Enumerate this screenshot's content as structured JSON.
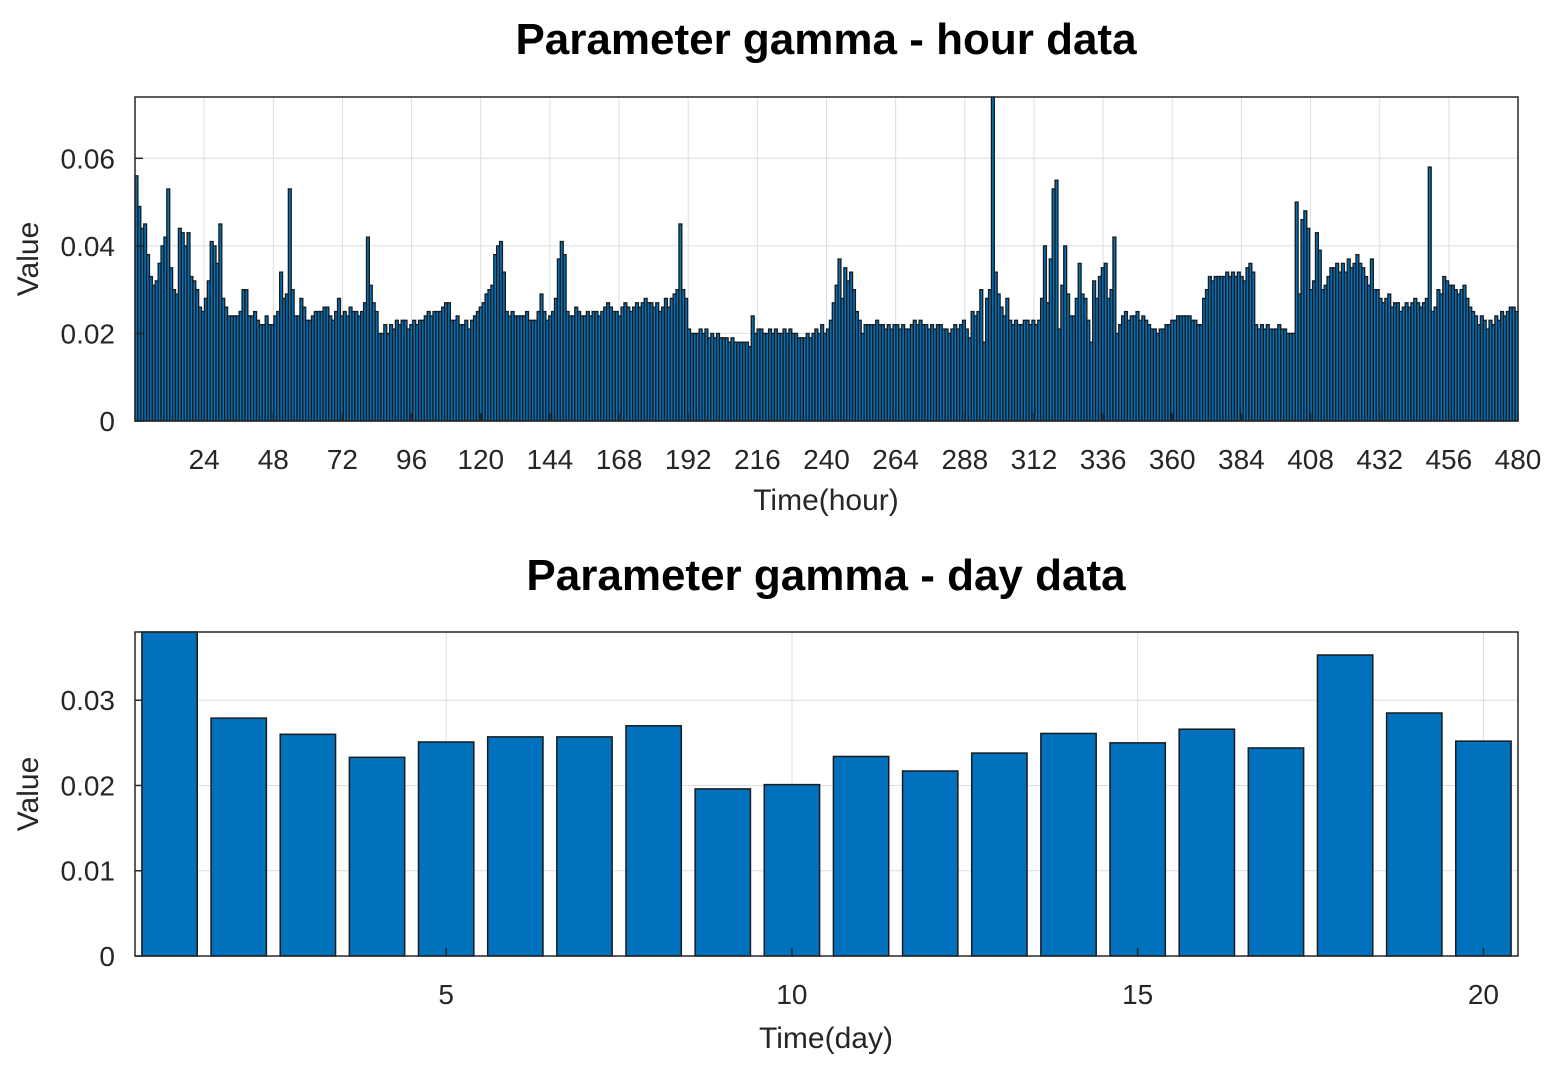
{
  "chart_data": [
    {
      "type": "bar",
      "title": "Parameter gamma - hour data",
      "xlabel": "Time(hour)",
      "ylabel": "Value",
      "xlim": [
        0,
        480
      ],
      "ylim": [
        0,
        0.074
      ],
      "xticks": [
        24,
        48,
        72,
        96,
        120,
        144,
        168,
        192,
        216,
        240,
        264,
        288,
        312,
        336,
        360,
        384,
        408,
        432,
        456,
        480
      ],
      "xtick_labels": [
        "24",
        "48",
        "72",
        "96",
        "120",
        "144",
        "168",
        "192",
        "216",
        "240",
        "264",
        "288",
        "312",
        "336",
        "360",
        "384",
        "408",
        "432",
        "456",
        "480"
      ],
      "yticks": [
        0,
        0.02,
        0.04,
        0.06
      ],
      "ytick_labels": [
        "0",
        "0.02",
        "0.04",
        "0.06"
      ],
      "grid": true,
      "bar_color": "#0072bd",
      "edge_color": "#1a1a1a",
      "values": [
        0.056,
        0.049,
        0.044,
        0.045,
        0.038,
        0.033,
        0.031,
        0.032,
        0.036,
        0.04,
        0.042,
        0.053,
        0.035,
        0.03,
        0.029,
        0.044,
        0.043,
        0.04,
        0.043,
        0.033,
        0.032,
        0.03,
        0.026,
        0.025,
        0.028,
        0.032,
        0.041,
        0.04,
        0.036,
        0.045,
        0.028,
        0.026,
        0.024,
        0.024,
        0.024,
        0.024,
        0.025,
        0.03,
        0.03,
        0.024,
        0.024,
        0.025,
        0.023,
        0.022,
        0.022,
        0.024,
        0.022,
        0.022,
        0.024,
        0.025,
        0.034,
        0.028,
        0.029,
        0.053,
        0.03,
        0.024,
        0.024,
        0.028,
        0.026,
        0.023,
        0.023,
        0.024,
        0.025,
        0.025,
        0.025,
        0.026,
        0.026,
        0.024,
        0.023,
        0.025,
        0.028,
        0.024,
        0.025,
        0.024,
        0.026,
        0.025,
        0.025,
        0.024,
        0.025,
        0.027,
        0.042,
        0.031,
        0.027,
        0.025,
        0.02,
        0.02,
        0.022,
        0.02,
        0.022,
        0.021,
        0.023,
        0.022,
        0.023,
        0.023,
        0.021,
        0.022,
        0.023,
        0.022,
        0.023,
        0.023,
        0.024,
        0.025,
        0.024,
        0.025,
        0.025,
        0.025,
        0.026,
        0.027,
        0.027,
        0.023,
        0.023,
        0.024,
        0.022,
        0.022,
        0.023,
        0.021,
        0.023,
        0.024,
        0.025,
        0.026,
        0.027,
        0.029,
        0.03,
        0.031,
        0.038,
        0.04,
        0.041,
        0.034,
        0.025,
        0.024,
        0.025,
        0.024,
        0.024,
        0.024,
        0.024,
        0.025,
        0.023,
        0.023,
        0.023,
        0.025,
        0.029,
        0.025,
        0.023,
        0.024,
        0.025,
        0.028,
        0.037,
        0.041,
        0.038,
        0.025,
        0.024,
        0.024,
        0.026,
        0.025,
        0.024,
        0.024,
        0.025,
        0.024,
        0.025,
        0.025,
        0.024,
        0.025,
        0.026,
        0.027,
        0.026,
        0.025,
        0.025,
        0.024,
        0.026,
        0.027,
        0.026,
        0.025,
        0.026,
        0.027,
        0.026,
        0.027,
        0.028,
        0.027,
        0.027,
        0.026,
        0.027,
        0.025,
        0.026,
        0.028,
        0.026,
        0.028,
        0.029,
        0.03,
        0.045,
        0.03,
        0.028,
        0.021,
        0.02,
        0.02,
        0.02,
        0.021,
        0.02,
        0.021,
        0.019,
        0.02,
        0.019,
        0.02,
        0.019,
        0.019,
        0.019,
        0.018,
        0.019,
        0.018,
        0.018,
        0.018,
        0.018,
        0.018,
        0.017,
        0.024,
        0.02,
        0.021,
        0.021,
        0.02,
        0.02,
        0.021,
        0.02,
        0.021,
        0.02,
        0.02,
        0.021,
        0.02,
        0.021,
        0.02,
        0.02,
        0.019,
        0.019,
        0.019,
        0.02,
        0.019,
        0.02,
        0.021,
        0.02,
        0.022,
        0.02,
        0.021,
        0.023,
        0.027,
        0.031,
        0.037,
        0.028,
        0.035,
        0.032,
        0.034,
        0.03,
        0.025,
        0.023,
        0.02,
        0.022,
        0.022,
        0.022,
        0.022,
        0.023,
        0.022,
        0.022,
        0.021,
        0.022,
        0.021,
        0.022,
        0.022,
        0.021,
        0.022,
        0.021,
        0.021,
        0.022,
        0.023,
        0.022,
        0.023,
        0.022,
        0.022,
        0.021,
        0.022,
        0.021,
        0.022,
        0.022,
        0.021,
        0.021,
        0.02,
        0.021,
        0.022,
        0.021,
        0.022,
        0.023,
        0.021,
        0.019,
        0.025,
        0.024,
        0.025,
        0.03,
        0.018,
        0.028,
        0.03,
        0.074,
        0.034,
        0.029,
        0.026,
        0.024,
        0.028,
        0.023,
        0.022,
        0.023,
        0.022,
        0.022,
        0.023,
        0.023,
        0.022,
        0.023,
        0.022,
        0.023,
        0.028,
        0.04,
        0.027,
        0.037,
        0.053,
        0.055,
        0.021,
        0.031,
        0.04,
        0.029,
        0.024,
        0.024,
        0.028,
        0.036,
        0.029,
        0.028,
        0.023,
        0.018,
        0.032,
        0.028,
        0.033,
        0.035,
        0.036,
        0.028,
        0.03,
        0.042,
        0.02,
        0.022,
        0.024,
        0.025,
        0.023,
        0.024,
        0.024,
        0.025,
        0.023,
        0.024,
        0.023,
        0.022,
        0.021,
        0.021,
        0.02,
        0.021,
        0.021,
        0.022,
        0.022,
        0.023,
        0.023,
        0.024,
        0.024,
        0.024,
        0.024,
        0.024,
        0.023,
        0.023,
        0.022,
        0.022,
        0.028,
        0.03,
        0.033,
        0.032,
        0.033,
        0.033,
        0.033,
        0.033,
        0.034,
        0.033,
        0.034,
        0.033,
        0.034,
        0.033,
        0.032,
        0.035,
        0.036,
        0.034,
        0.022,
        0.021,
        0.022,
        0.021,
        0.022,
        0.021,
        0.021,
        0.021,
        0.022,
        0.021,
        0.021,
        0.02,
        0.02,
        0.02,
        0.05,
        0.029,
        0.046,
        0.048,
        0.044,
        0.03,
        0.032,
        0.043,
        0.039,
        0.03,
        0.031,
        0.033,
        0.035,
        0.035,
        0.036,
        0.034,
        0.036,
        0.034,
        0.037,
        0.035,
        0.036,
        0.038,
        0.036,
        0.035,
        0.033,
        0.031,
        0.037,
        0.03,
        0.03,
        0.028,
        0.027,
        0.028,
        0.029,
        0.026,
        0.027,
        0.027,
        0.025,
        0.026,
        0.027,
        0.026,
        0.027,
        0.028,
        0.027,
        0.026,
        0.027,
        0.028,
        0.058,
        0.025,
        0.026,
        0.03,
        0.029,
        0.033,
        0.032,
        0.031,
        0.031,
        0.03,
        0.029,
        0.03,
        0.031,
        0.028,
        0.026,
        0.025,
        0.024,
        0.022,
        0.024,
        0.023,
        0.021,
        0.023,
        0.022,
        0.024,
        0.023,
        0.025,
        0.024,
        0.025,
        0.026,
        0.026,
        0.025
      ]
    },
    {
      "type": "bar",
      "title": "Parameter gamma - day data",
      "xlabel": "Time(day)",
      "ylabel": "Value",
      "categories": [
        1,
        2,
        3,
        4,
        5,
        6,
        7,
        8,
        9,
        10,
        11,
        12,
        13,
        14,
        15,
        16,
        17,
        18,
        19,
        20
      ],
      "values": [
        0.038,
        0.0279,
        0.026,
        0.0233,
        0.0251,
        0.0257,
        0.0257,
        0.027,
        0.0196,
        0.0201,
        0.0234,
        0.0217,
        0.0238,
        0.0261,
        0.025,
        0.0266,
        0.0244,
        0.0353,
        0.0285,
        0.0252
      ],
      "xlim": [
        0.5,
        20.5
      ],
      "ylim": [
        0,
        0.038
      ],
      "xticks": [
        5,
        10,
        15,
        20
      ],
      "xtick_labels": [
        "5",
        "10",
        "15",
        "20"
      ],
      "yticks": [
        0,
        0.01,
        0.02,
        0.03
      ],
      "ytick_labels": [
        "0",
        "0.01",
        "0.02",
        "0.03"
      ],
      "grid": true,
      "bar_color": "#0072bd",
      "edge_color": "#1a1a1a"
    }
  ]
}
